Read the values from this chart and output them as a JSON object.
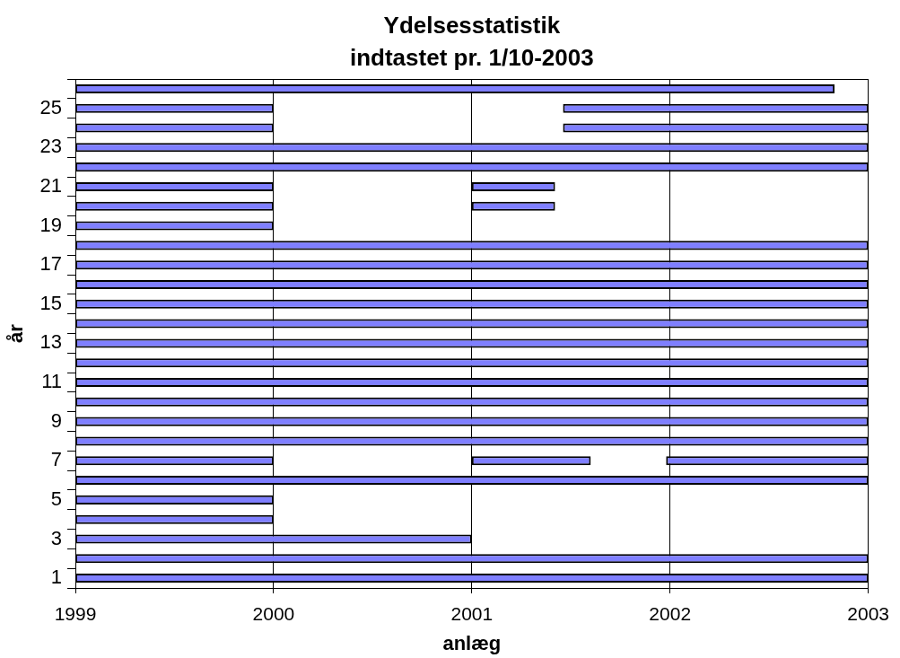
{
  "chart_data": {
    "type": "bar",
    "orientation": "horizontal",
    "title": "Ydelsesstatistik",
    "subtitle": "indtastet pr. 1/10-2003",
    "xlabel": "anlæg",
    "ylabel": "år",
    "categories": [
      null,
      "25",
      null,
      "23",
      null,
      "21",
      null,
      "19",
      null,
      "17",
      null,
      "15",
      null,
      "13",
      null,
      "11",
      null,
      "9",
      null,
      "7",
      null,
      "5",
      null,
      "3",
      null,
      "1"
    ],
    "series": [
      {
        "color": "#7f7fff",
        "base": [
          1999,
          1999,
          1999,
          1999,
          1999,
          1999,
          1999,
          1999,
          1999,
          1999,
          1999,
          1999,
          1999,
          1999,
          1999,
          1999,
          1999,
          1999,
          1999,
          1999,
          1999,
          1999,
          1999,
          1999,
          1999,
          1999
        ],
        "values": [
          3.83,
          1,
          1,
          4,
          4,
          1,
          1,
          1,
          4,
          4,
          4,
          4,
          4,
          4,
          4,
          4,
          4,
          4,
          4,
          1,
          4,
          1,
          1,
          2,
          4,
          4
        ]
      },
      {
        "color": "#7f7fff",
        "base": [
          null,
          2001.46,
          2001.46,
          null,
          null,
          2001,
          2001,
          null,
          null,
          null,
          null,
          null,
          null,
          null,
          null,
          null,
          null,
          null,
          null,
          2001,
          null,
          null,
          null,
          null,
          null,
          null
        ],
        "values": [
          null,
          1.54,
          1.54,
          null,
          null,
          0.42,
          0.42,
          null,
          null,
          null,
          null,
          null,
          null,
          null,
          null,
          null,
          null,
          null,
          null,
          0.6,
          null,
          null,
          null,
          null,
          null,
          null
        ]
      },
      {
        "color": "#7f7fff",
        "base": [
          null,
          null,
          null,
          null,
          null,
          null,
          null,
          null,
          null,
          null,
          null,
          null,
          null,
          null,
          null,
          null,
          null,
          null,
          null,
          2001.98,
          null,
          null,
          null,
          null,
          null,
          null
        ],
        "values": [
          null,
          null,
          null,
          null,
          null,
          null,
          null,
          null,
          null,
          null,
          null,
          null,
          null,
          null,
          null,
          null,
          null,
          null,
          null,
          1.02,
          null,
          null,
          null,
          null,
          null,
          null
        ]
      }
    ],
    "xlim": [
      1999,
      2003
    ],
    "xticks": [
      1999,
      2000,
      2001,
      2002,
      2003
    ],
    "grid": "x"
  }
}
